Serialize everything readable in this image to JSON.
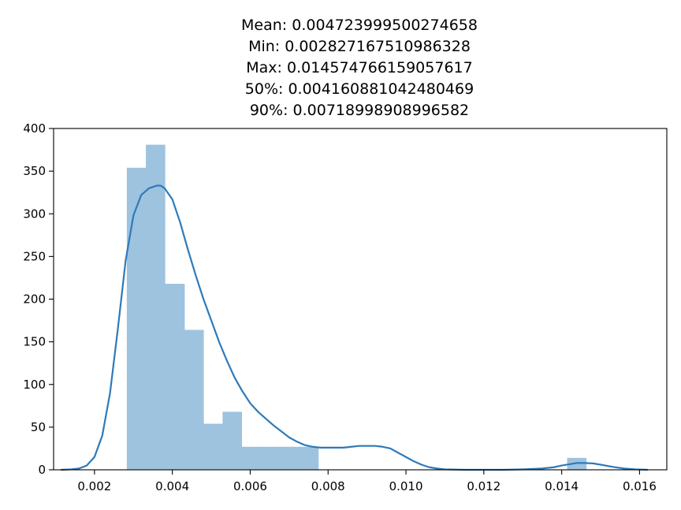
{
  "chart_data": {
    "type": "bar",
    "title": [
      "Mean: 0.004723999500274658",
      "Min: 0.002827167510986328",
      "Max: 0.014574766159057617",
      "50%: 0.004160881042480469",
      "90%: 0.00718998908996582"
    ],
    "xlabel": "",
    "ylabel": "",
    "xlim": [
      0.00095,
      0.0167
    ],
    "ylim": [
      0,
      400
    ],
    "x_ticks": [
      0.002,
      0.004,
      0.006,
      0.008,
      0.01,
      0.012,
      0.014,
      0.016
    ],
    "x_tick_labels": [
      "0.002",
      "0.004",
      "0.006",
      "0.008",
      "0.010",
      "0.012",
      "0.014",
      "0.016"
    ],
    "y_ticks": [
      0,
      50,
      100,
      150,
      200,
      250,
      300,
      350,
      400
    ],
    "y_tick_labels": [
      "0",
      "50",
      "100",
      "150",
      "200",
      "250",
      "300",
      "350",
      "400"
    ],
    "histogram": {
      "bin_edges": [
        0.00283,
        0.00332,
        0.00381,
        0.00431,
        0.0048,
        0.00529,
        0.00578,
        0.00627,
        0.00676,
        0.00725,
        0.00775,
        0.00824,
        0.00873,
        0.00922,
        0.00971,
        0.0102,
        0.0107,
        0.01119,
        0.01168,
        0.01217,
        0.01266,
        0.01315,
        0.01365,
        0.01414,
        0.01463
      ],
      "counts": [
        354,
        381,
        218,
        164,
        54,
        68,
        27,
        27,
        27,
        27,
        0,
        0,
        0,
        0,
        0,
        0,
        0,
        0,
        0,
        0,
        0,
        0,
        0,
        14
      ],
      "color": "#9ec3df"
    },
    "kde": {
      "color": "#2e7ab9",
      "x": [
        0.00115,
        0.0014,
        0.0016,
        0.0018,
        0.002,
        0.0022,
        0.0024,
        0.0026,
        0.0028,
        0.003,
        0.0032,
        0.0034,
        0.0036,
        0.0037,
        0.0038,
        0.004,
        0.0042,
        0.0044,
        0.0046,
        0.0048,
        0.005,
        0.0052,
        0.0054,
        0.0056,
        0.0058,
        0.006,
        0.0062,
        0.0064,
        0.0066,
        0.0068,
        0.007,
        0.0072,
        0.0074,
        0.0076,
        0.0078,
        0.008,
        0.0082,
        0.0084,
        0.0086,
        0.0088,
        0.009,
        0.0092,
        0.0094,
        0.0096,
        0.0098,
        0.01,
        0.0102,
        0.0104,
        0.0106,
        0.0108,
        0.011,
        0.0115,
        0.012,
        0.0125,
        0.013,
        0.0135,
        0.0138,
        0.014,
        0.0142,
        0.0144,
        0.0146,
        0.0148,
        0.015,
        0.0153,
        0.0156,
        0.0159,
        0.0162
      ],
      "y": [
        0,
        0.5,
        1.5,
        5,
        15,
        40,
        90,
        165,
        245,
        298,
        322,
        330,
        333,
        333,
        330,
        317,
        290,
        258,
        228,
        200,
        175,
        150,
        128,
        108,
        92,
        78,
        68,
        60,
        52,
        45,
        38,
        33,
        29,
        27,
        26,
        26,
        26,
        26,
        27,
        28,
        28,
        28,
        27,
        25,
        20,
        15,
        10,
        6,
        3,
        1.5,
        0.5,
        0,
        0,
        0,
        0.5,
        1.5,
        3,
        5,
        6.5,
        8,
        8,
        7.5,
        6,
        3.5,
        1.5,
        0.5,
        0
      ]
    }
  }
}
